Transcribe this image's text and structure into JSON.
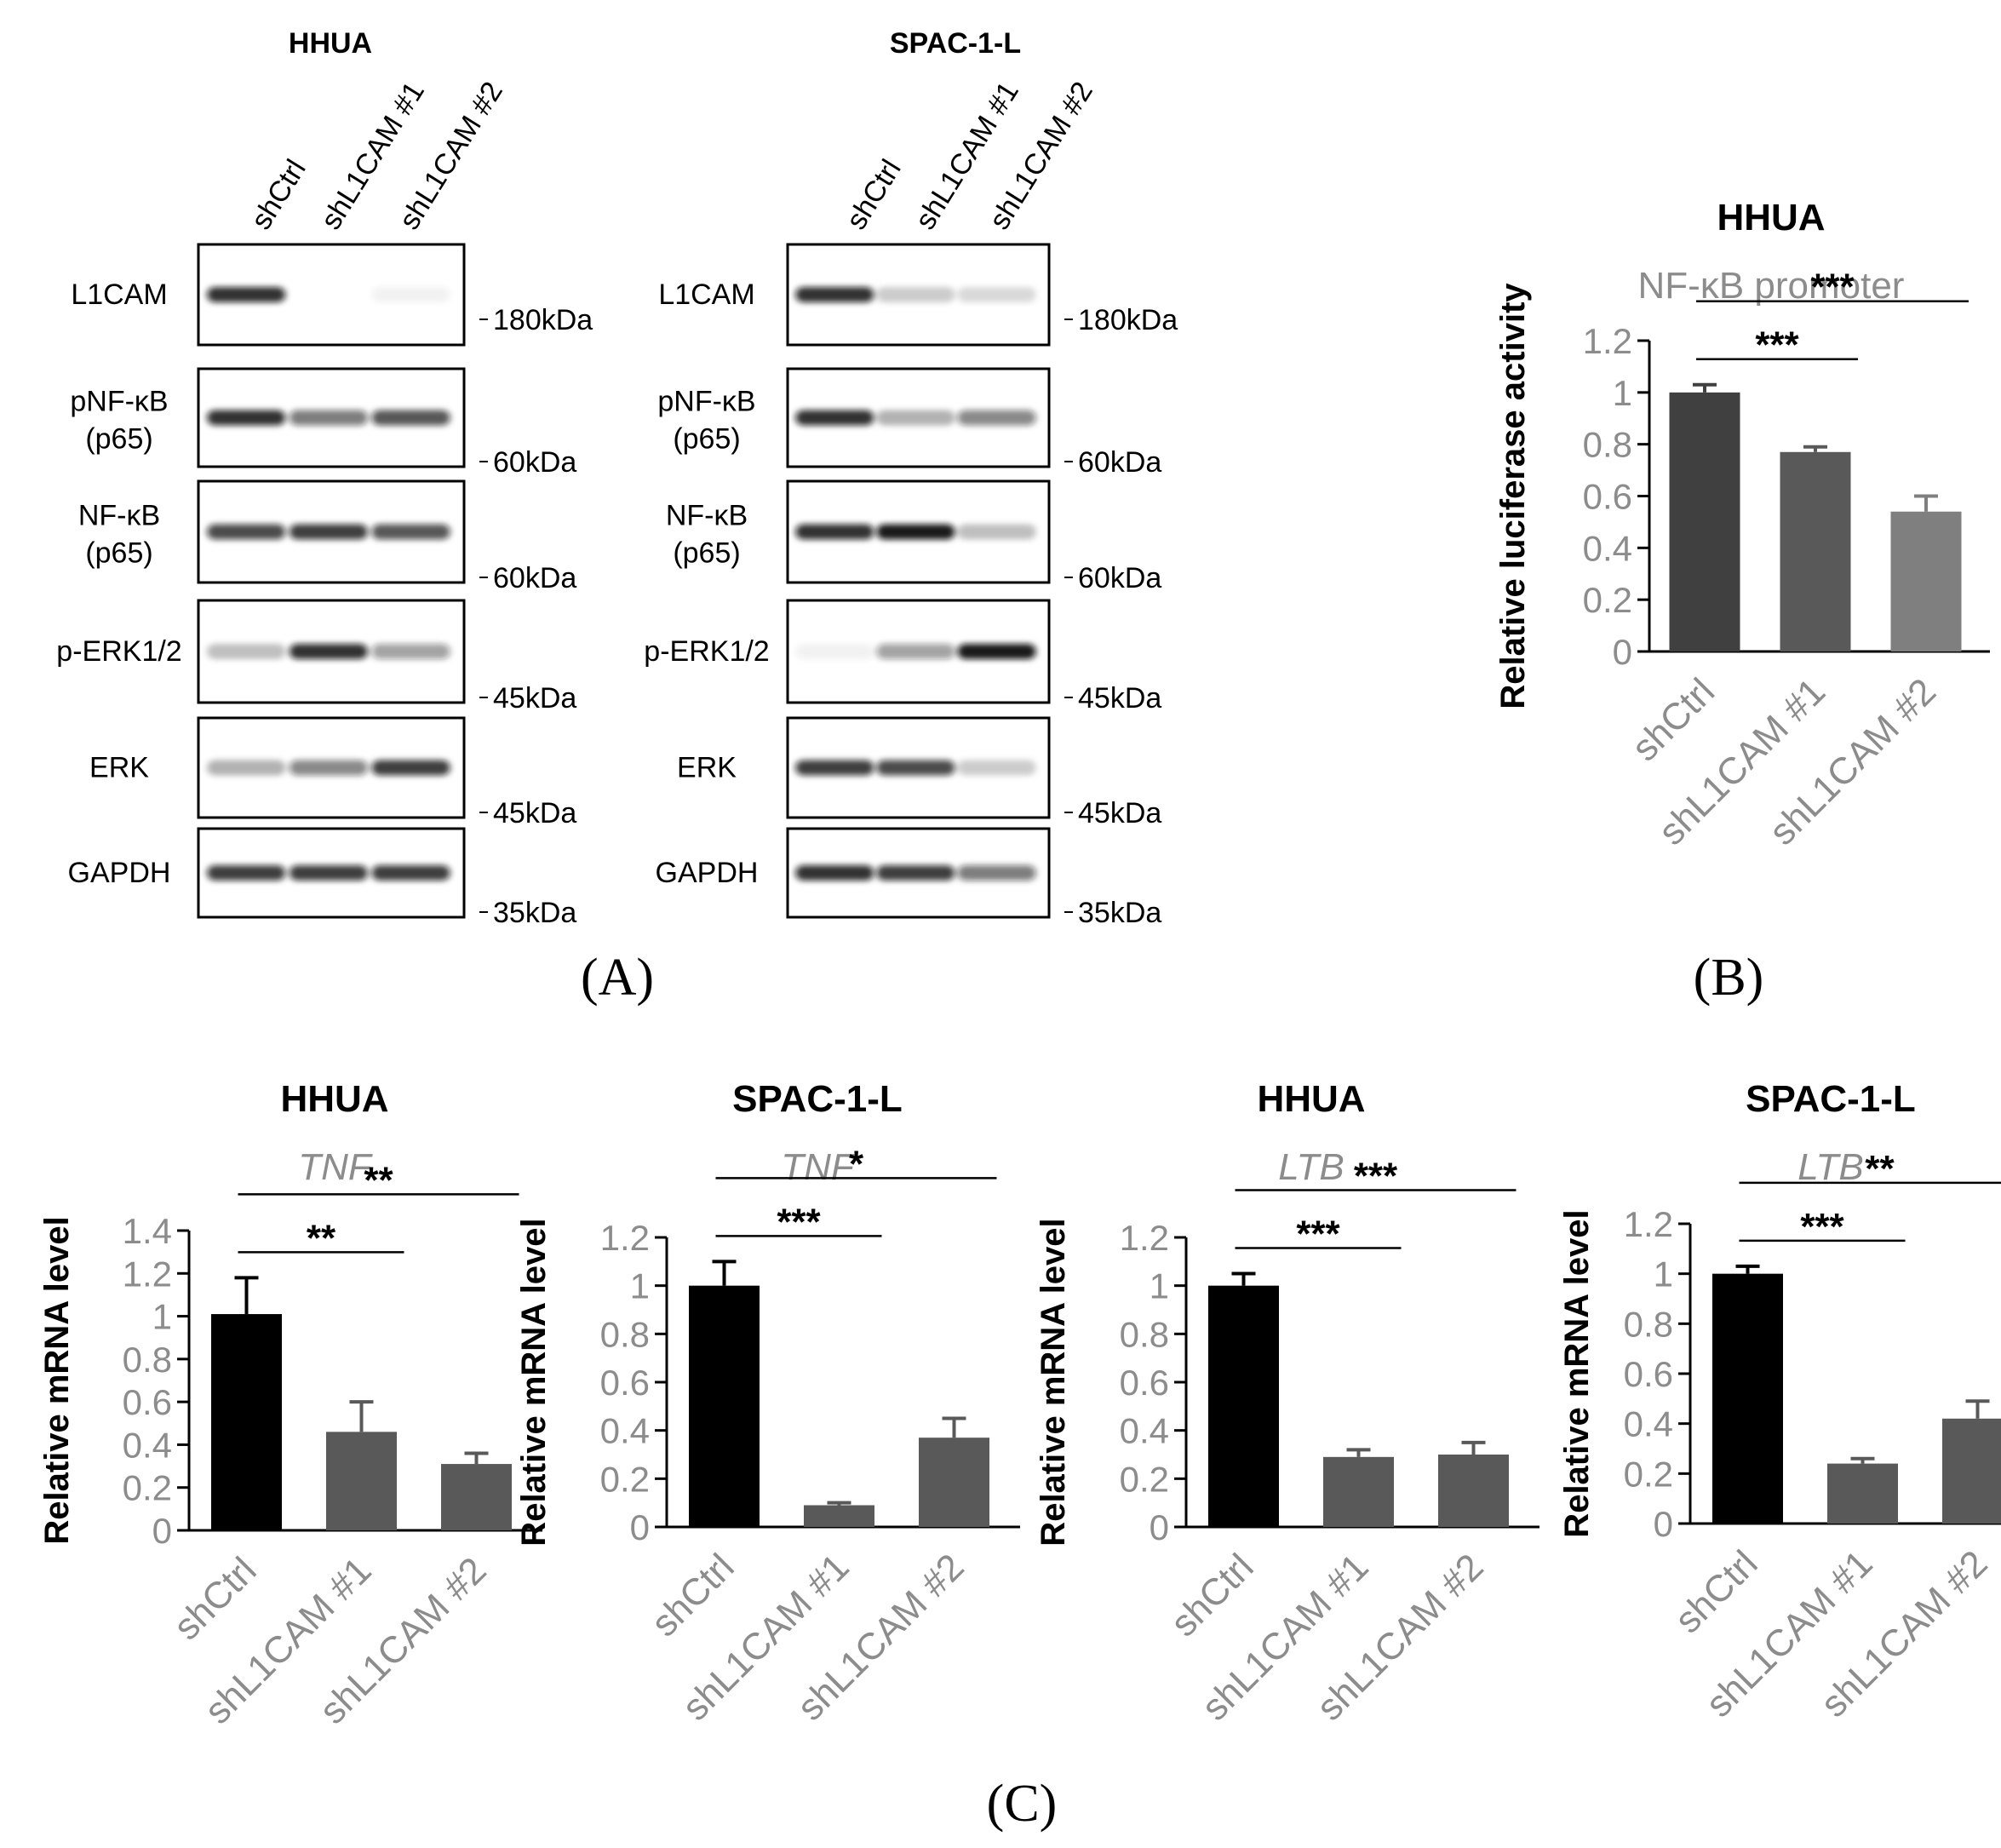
{
  "panel_labels": {
    "a": "(A)",
    "b": "(B)",
    "c": "(C)"
  },
  "blots": [
    {
      "title": "HHUA",
      "lanes": [
        "shCtrl",
        "shL1CAM #1",
        "shL1CAM #2"
      ],
      "rows": [
        {
          "label": [
            "L1CAM"
          ],
          "marker": "180kDa",
          "bands": [
            0.85,
            0.0,
            0.05
          ]
        },
        {
          "label": [
            "pNF-κB",
            "(p65)"
          ],
          "marker": "60kDa",
          "bands": [
            0.85,
            0.55,
            0.7
          ]
        },
        {
          "label": [
            "NF-κB",
            "(p65)"
          ],
          "marker": "60kDa",
          "bands": [
            0.75,
            0.8,
            0.7
          ]
        },
        {
          "label": [
            "p-ERK1/2"
          ],
          "marker": "45kDa",
          "bands": [
            0.25,
            0.85,
            0.4
          ]
        },
        {
          "label": [
            "ERK"
          ],
          "marker": "45kDa",
          "bands": [
            0.3,
            0.5,
            0.8
          ]
        },
        {
          "label": [
            "GAPDH"
          ],
          "marker": "35kDa",
          "bands": [
            0.8,
            0.8,
            0.8
          ]
        }
      ]
    },
    {
      "title": "SPAC-1-L",
      "lanes": [
        "shCtrl",
        "shL1CAM #1",
        "shL1CAM #2"
      ],
      "rows": [
        {
          "label": [
            "L1CAM"
          ],
          "marker": "180kDa",
          "bands": [
            0.85,
            0.2,
            0.15
          ]
        },
        {
          "label": [
            "pNF-κB",
            "(p65)"
          ],
          "marker": "60kDa",
          "bands": [
            0.85,
            0.3,
            0.5
          ]
        },
        {
          "label": [
            "NF-κB",
            "(p65)"
          ],
          "marker": "60kDa",
          "bands": [
            0.85,
            0.95,
            0.25
          ]
        },
        {
          "label": [
            "p-ERK1/2"
          ],
          "marker": "45kDa",
          "bands": [
            0.05,
            0.4,
            0.95
          ]
        },
        {
          "label": [
            "ERK"
          ],
          "marker": "45kDa",
          "bands": [
            0.8,
            0.75,
            0.2
          ]
        },
        {
          "label": [
            "GAPDH"
          ],
          "marker": "35kDa",
          "bands": [
            0.85,
            0.8,
            0.55
          ]
        }
      ]
    }
  ],
  "chart_data": [
    {
      "type": "bar",
      "title": "HHUA",
      "subtitle": "NF-κB promoter",
      "ylabel": "Relative  luciferase activity",
      "ylim": [
        0,
        1.2
      ],
      "yticks": [
        "0",
        "0.2",
        "0.4",
        "0.6",
        "0.8",
        "1",
        "1.2"
      ],
      "categories": [
        "shCtrl",
        "shL1CAM #1",
        "shL1CAM #2"
      ],
      "values": [
        1.0,
        0.77,
        0.54
      ],
      "errors": [
        0.03,
        0.02,
        0.06
      ],
      "colors": [
        "#404040",
        "#595959",
        "#7f7f7f"
      ],
      "significance": [
        {
          "label": "***",
          "from": 0,
          "to": 1
        },
        {
          "label": "***",
          "from": 0,
          "to": 2
        }
      ]
    },
    {
      "type": "bar",
      "title": "HHUA",
      "subtitle": "TNF",
      "ylabel": "Relative mRNA level",
      "ylim": [
        0,
        1.4
      ],
      "yticks": [
        "0",
        "0.2",
        "0.4",
        "0.6",
        "0.8",
        "1",
        "1.2",
        "1.4"
      ],
      "categories": [
        "shCtrl",
        "shL1CAM #1",
        "shL1CAM #2"
      ],
      "values": [
        1.01,
        0.46,
        0.31
      ],
      "errors": [
        0.17,
        0.14,
        0.05
      ],
      "colors": [
        "#000000",
        "#595959",
        "#595959"
      ],
      "significance": [
        {
          "label": "**",
          "from": 0,
          "to": 1
        },
        {
          "label": "**",
          "from": 0,
          "to": 2
        }
      ]
    },
    {
      "type": "bar",
      "title": "SPAC-1-L",
      "subtitle": "TNF",
      "ylabel": "Relative mRNA level",
      "ylim": [
        0,
        1.2
      ],
      "yticks": [
        "0",
        "0.2",
        "0.4",
        "0.6",
        "0.8",
        "1",
        "1.2"
      ],
      "categories": [
        "shCtrl",
        "shL1CAM #1",
        "shL1CAM #2"
      ],
      "values": [
        1.0,
        0.09,
        0.37
      ],
      "errors": [
        0.1,
        0.01,
        0.08
      ],
      "colors": [
        "#000000",
        "#595959",
        "#595959"
      ],
      "significance": [
        {
          "label": "***",
          "from": 0,
          "to": 1
        },
        {
          "label": "*",
          "from": 0,
          "to": 2
        }
      ]
    },
    {
      "type": "bar",
      "title": "HHUA",
      "subtitle": "LTB",
      "ylabel": "Relative mRNA level",
      "ylim": [
        0,
        1.2
      ],
      "yticks": [
        "0",
        "0.2",
        "0.4",
        "0.6",
        "0.8",
        "1",
        "1.2"
      ],
      "categories": [
        "shCtrl",
        "shL1CAM #1",
        "shL1CAM #2"
      ],
      "values": [
        1.0,
        0.29,
        0.3
      ],
      "errors": [
        0.05,
        0.03,
        0.05
      ],
      "colors": [
        "#000000",
        "#595959",
        "#595959"
      ],
      "significance": [
        {
          "label": "***",
          "from": 0,
          "to": 1
        },
        {
          "label": "***",
          "from": 0,
          "to": 2
        }
      ]
    },
    {
      "type": "bar",
      "title": "SPAC-1-L",
      "subtitle": "LTB",
      "ylabel": "Relative mRNA level",
      "ylim": [
        0,
        1.2
      ],
      "yticks": [
        "0",
        "0.2",
        "0.4",
        "0.6",
        "0.8",
        "1",
        "1.2"
      ],
      "categories": [
        "shCtrl",
        "shL1CAM #1",
        "shL1CAM #2"
      ],
      "values": [
        1.0,
        0.24,
        0.42
      ],
      "errors": [
        0.03,
        0.02,
        0.07
      ],
      "colors": [
        "#000000",
        "#595959",
        "#595959"
      ],
      "significance": [
        {
          "label": "***",
          "from": 0,
          "to": 1
        },
        {
          "label": "**",
          "from": 0,
          "to": 2
        }
      ]
    }
  ]
}
